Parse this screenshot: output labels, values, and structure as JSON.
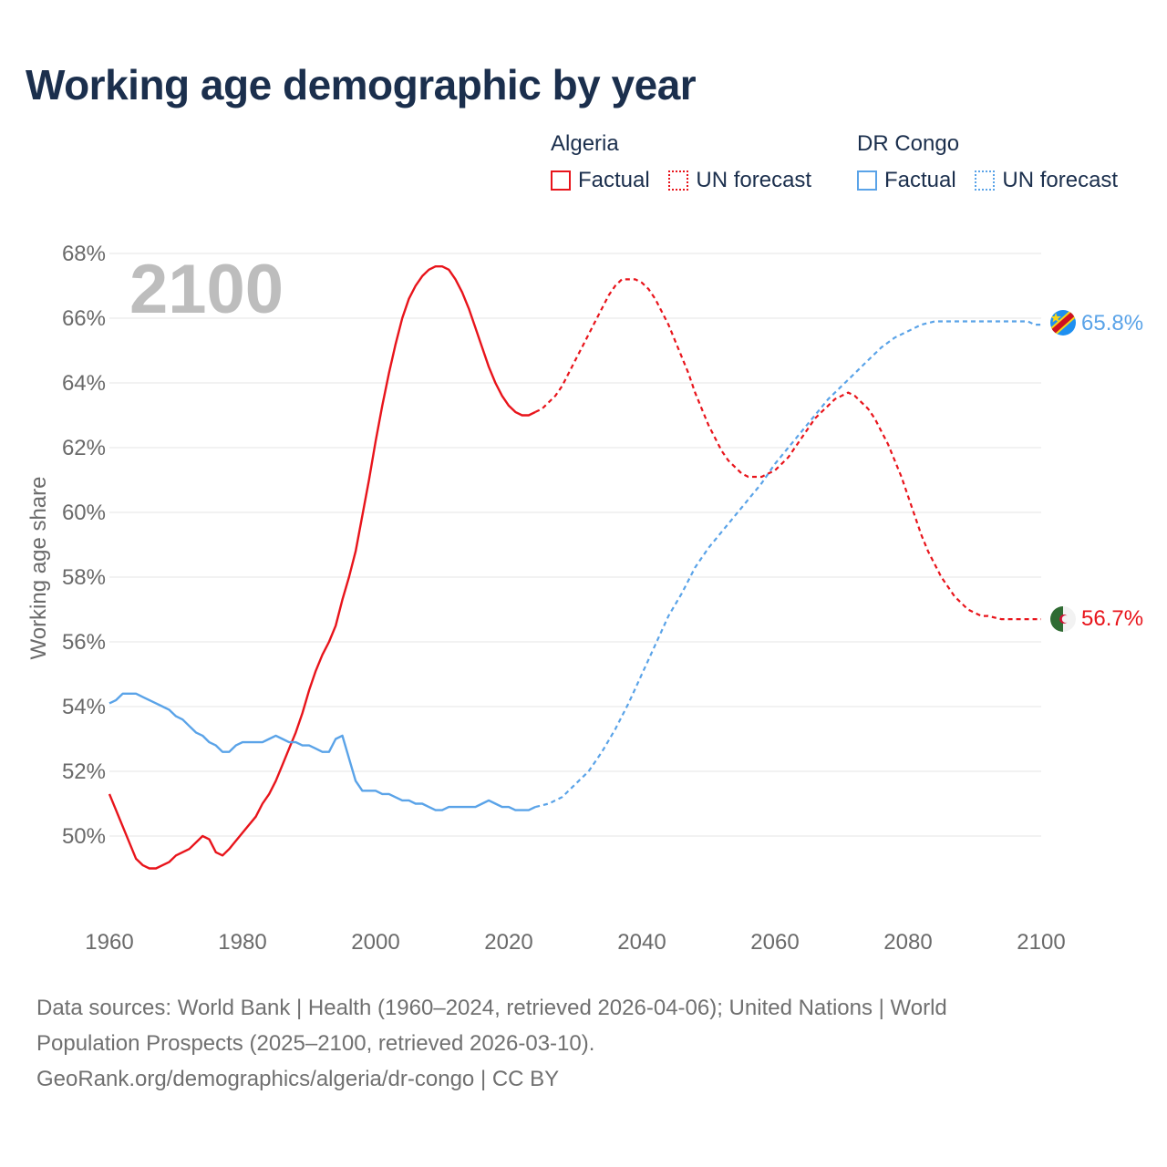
{
  "title": "Working age demographic by year",
  "legend": {
    "algeria": {
      "name": "Algeria",
      "factual": "Factual",
      "forecast": "UN forecast",
      "color": "#e8141b"
    },
    "drc": {
      "name": "DR Congo",
      "factual": "Factual",
      "forecast": "UN forecast",
      "color": "#5aa3e8"
    }
  },
  "year_label": "2100",
  "end_labels": {
    "drc": "65.8%",
    "algeria": "56.7%"
  },
  "sources": {
    "line1": "Data sources: World Bank | Health (1960–2024, retrieved 2026-04-06); United Nations | World",
    "line2": "Population Prospects (2025–2100, retrieved 2026-03-10).",
    "line3": "GeoRank.org/demographics/algeria/dr-congo | CC BY"
  },
  "chart_data": {
    "type": "line",
    "title": "Working age demographic by year",
    "xlabel": "",
    "ylabel": "Working age share",
    "xlim": [
      1960,
      2100
    ],
    "ylim": [
      48,
      68.4
    ],
    "x_ticks": [
      "1960",
      "1980",
      "2000",
      "2020",
      "2040",
      "2060",
      "2080",
      "2100"
    ],
    "y_ticks": [
      "50%",
      "52%",
      "54%",
      "56%",
      "58%",
      "60%",
      "62%",
      "64%",
      "66%",
      "68%"
    ],
    "y_tick_values": [
      50,
      52,
      54,
      56,
      58,
      60,
      62,
      64,
      66,
      68
    ],
    "grid": true,
    "forecast_start": 2024,
    "series": [
      {
        "name": "Algeria",
        "color": "#e8141b",
        "points": [
          [
            1960,
            51.3
          ],
          [
            1962,
            50.3
          ],
          [
            1964,
            49.3
          ],
          [
            1965,
            49.1
          ],
          [
            1966,
            49.0
          ],
          [
            1967,
            49.0
          ],
          [
            1968,
            49.1
          ],
          [
            1969,
            49.2
          ],
          [
            1970,
            49.4
          ],
          [
            1972,
            49.6
          ],
          [
            1974,
            50.0
          ],
          [
            1975,
            49.9
          ],
          [
            1976,
            49.5
          ],
          [
            1977,
            49.4
          ],
          [
            1978,
            49.6
          ],
          [
            1980,
            50.1
          ],
          [
            1982,
            50.6
          ],
          [
            1983,
            51.0
          ],
          [
            1984,
            51.3
          ],
          [
            1985,
            51.7
          ],
          [
            1986,
            52.2
          ],
          [
            1987,
            52.7
          ],
          [
            1988,
            53.2
          ],
          [
            1989,
            53.8
          ],
          [
            1990,
            54.5
          ],
          [
            1991,
            55.1
          ],
          [
            1992,
            55.6
          ],
          [
            1993,
            56.0
          ],
          [
            1994,
            56.5
          ],
          [
            1995,
            57.3
          ],
          [
            1996,
            58.0
          ],
          [
            1997,
            58.8
          ],
          [
            1998,
            59.9
          ],
          [
            1999,
            61.0
          ],
          [
            2000,
            62.2
          ],
          [
            2001,
            63.3
          ],
          [
            2002,
            64.3
          ],
          [
            2003,
            65.2
          ],
          [
            2004,
            66.0
          ],
          [
            2005,
            66.6
          ],
          [
            2006,
            67.0
          ],
          [
            2007,
            67.3
          ],
          [
            2008,
            67.5
          ],
          [
            2009,
            67.6
          ],
          [
            2010,
            67.6
          ],
          [
            2011,
            67.5
          ],
          [
            2012,
            67.2
          ],
          [
            2013,
            66.8
          ],
          [
            2014,
            66.3
          ],
          [
            2015,
            65.7
          ],
          [
            2016,
            65.1
          ],
          [
            2017,
            64.5
          ],
          [
            2018,
            64.0
          ],
          [
            2019,
            63.6
          ],
          [
            2020,
            63.3
          ],
          [
            2021,
            63.1
          ],
          [
            2022,
            63.0
          ],
          [
            2023,
            63.0
          ],
          [
            2024,
            63.1
          ],
          [
            2025,
            63.2
          ],
          [
            2026,
            63.4
          ],
          [
            2027,
            63.6
          ],
          [
            2028,
            63.9
          ],
          [
            2029,
            64.3
          ],
          [
            2030,
            64.7
          ],
          [
            2031,
            65.1
          ],
          [
            2032,
            65.5
          ],
          [
            2033,
            65.9
          ],
          [
            2034,
            66.3
          ],
          [
            2035,
            66.7
          ],
          [
            2036,
            67.0
          ],
          [
            2037,
            67.2
          ],
          [
            2038,
            67.2
          ],
          [
            2039,
            67.2
          ],
          [
            2040,
            67.1
          ],
          [
            2041,
            66.9
          ],
          [
            2042,
            66.6
          ],
          [
            2043,
            66.2
          ],
          [
            2044,
            65.8
          ],
          [
            2045,
            65.3
          ],
          [
            2046,
            64.8
          ],
          [
            2047,
            64.3
          ],
          [
            2048,
            63.7
          ],
          [
            2049,
            63.2
          ],
          [
            2050,
            62.7
          ],
          [
            2051,
            62.3
          ],
          [
            2052,
            61.9
          ],
          [
            2053,
            61.6
          ],
          [
            2054,
            61.4
          ],
          [
            2055,
            61.2
          ],
          [
            2056,
            61.1
          ],
          [
            2057,
            61.1
          ],
          [
            2058,
            61.1
          ],
          [
            2059,
            61.2
          ],
          [
            2060,
            61.3
          ],
          [
            2061,
            61.5
          ],
          [
            2062,
            61.7
          ],
          [
            2063,
            62.0
          ],
          [
            2064,
            62.3
          ],
          [
            2065,
            62.6
          ],
          [
            2066,
            62.9
          ],
          [
            2067,
            63.1
          ],
          [
            2068,
            63.3
          ],
          [
            2069,
            63.5
          ],
          [
            2070,
            63.6
          ],
          [
            2071,
            63.7
          ],
          [
            2072,
            63.6
          ],
          [
            2073,
            63.4
          ],
          [
            2074,
            63.2
          ],
          [
            2075,
            62.9
          ],
          [
            2076,
            62.5
          ],
          [
            2077,
            62.1
          ],
          [
            2078,
            61.6
          ],
          [
            2079,
            61.1
          ],
          [
            2080,
            60.5
          ],
          [
            2081,
            59.9
          ],
          [
            2082,
            59.3
          ],
          [
            2083,
            58.8
          ],
          [
            2084,
            58.4
          ],
          [
            2085,
            58.0
          ],
          [
            2086,
            57.7
          ],
          [
            2087,
            57.4
          ],
          [
            2088,
            57.2
          ],
          [
            2089,
            57.0
          ],
          [
            2090,
            56.9
          ],
          [
            2091,
            56.8
          ],
          [
            2092,
            56.8
          ],
          [
            2094,
            56.7
          ],
          [
            2096,
            56.7
          ],
          [
            2098,
            56.7
          ],
          [
            2100,
            56.7
          ]
        ]
      },
      {
        "name": "DR Congo",
        "color": "#5aa3e8",
        "points": [
          [
            1960,
            54.1
          ],
          [
            1961,
            54.2
          ],
          [
            1962,
            54.4
          ],
          [
            1963,
            54.4
          ],
          [
            1964,
            54.4
          ],
          [
            1965,
            54.3
          ],
          [
            1966,
            54.2
          ],
          [
            1967,
            54.1
          ],
          [
            1968,
            54.0
          ],
          [
            1969,
            53.9
          ],
          [
            1970,
            53.7
          ],
          [
            1971,
            53.6
          ],
          [
            1972,
            53.4
          ],
          [
            1973,
            53.2
          ],
          [
            1974,
            53.1
          ],
          [
            1975,
            52.9
          ],
          [
            1976,
            52.8
          ],
          [
            1977,
            52.6
          ],
          [
            1978,
            52.6
          ],
          [
            1979,
            52.8
          ],
          [
            1980,
            52.9
          ],
          [
            1981,
            52.9
          ],
          [
            1982,
            52.9
          ],
          [
            1983,
            52.9
          ],
          [
            1984,
            53.0
          ],
          [
            1985,
            53.1
          ],
          [
            1986,
            53.0
          ],
          [
            1987,
            52.9
          ],
          [
            1988,
            52.9
          ],
          [
            1989,
            52.8
          ],
          [
            1990,
            52.8
          ],
          [
            1991,
            52.7
          ],
          [
            1992,
            52.6
          ],
          [
            1993,
            52.6
          ],
          [
            1994,
            53.0
          ],
          [
            1995,
            53.1
          ],
          [
            1996,
            52.4
          ],
          [
            1997,
            51.7
          ],
          [
            1998,
            51.4
          ],
          [
            1999,
            51.4
          ],
          [
            2000,
            51.4
          ],
          [
            2001,
            51.3
          ],
          [
            2002,
            51.3
          ],
          [
            2003,
            51.2
          ],
          [
            2004,
            51.1
          ],
          [
            2005,
            51.1
          ],
          [
            2006,
            51.0
          ],
          [
            2007,
            51.0
          ],
          [
            2008,
            50.9
          ],
          [
            2009,
            50.8
          ],
          [
            2010,
            50.8
          ],
          [
            2011,
            50.9
          ],
          [
            2012,
            50.9
          ],
          [
            2013,
            50.9
          ],
          [
            2014,
            50.9
          ],
          [
            2015,
            50.9
          ],
          [
            2016,
            51.0
          ],
          [
            2017,
            51.1
          ],
          [
            2018,
            51.0
          ],
          [
            2019,
            50.9
          ],
          [
            2020,
            50.9
          ],
          [
            2021,
            50.8
          ],
          [
            2022,
            50.8
          ],
          [
            2023,
            50.8
          ],
          [
            2024,
            50.9
          ],
          [
            2026,
            51.0
          ],
          [
            2028,
            51.2
          ],
          [
            2030,
            51.6
          ],
          [
            2032,
            52.0
          ],
          [
            2034,
            52.6
          ],
          [
            2036,
            53.3
          ],
          [
            2038,
            54.1
          ],
          [
            2040,
            55.0
          ],
          [
            2042,
            55.9
          ],
          [
            2044,
            56.8
          ],
          [
            2046,
            57.5
          ],
          [
            2048,
            58.3
          ],
          [
            2050,
            58.9
          ],
          [
            2052,
            59.4
          ],
          [
            2054,
            59.9
          ],
          [
            2056,
            60.4
          ],
          [
            2058,
            60.9
          ],
          [
            2060,
            61.5
          ],
          [
            2062,
            62.0
          ],
          [
            2064,
            62.5
          ],
          [
            2066,
            63.0
          ],
          [
            2068,
            63.5
          ],
          [
            2070,
            63.9
          ],
          [
            2072,
            64.3
          ],
          [
            2074,
            64.7
          ],
          [
            2076,
            65.1
          ],
          [
            2078,
            65.4
          ],
          [
            2080,
            65.6
          ],
          [
            2082,
            65.8
          ],
          [
            2084,
            65.9
          ],
          [
            2086,
            65.9
          ],
          [
            2090,
            65.9
          ],
          [
            2094,
            65.9
          ],
          [
            2098,
            65.9
          ],
          [
            2099,
            65.8
          ],
          [
            2100,
            65.8
          ]
        ]
      }
    ]
  }
}
